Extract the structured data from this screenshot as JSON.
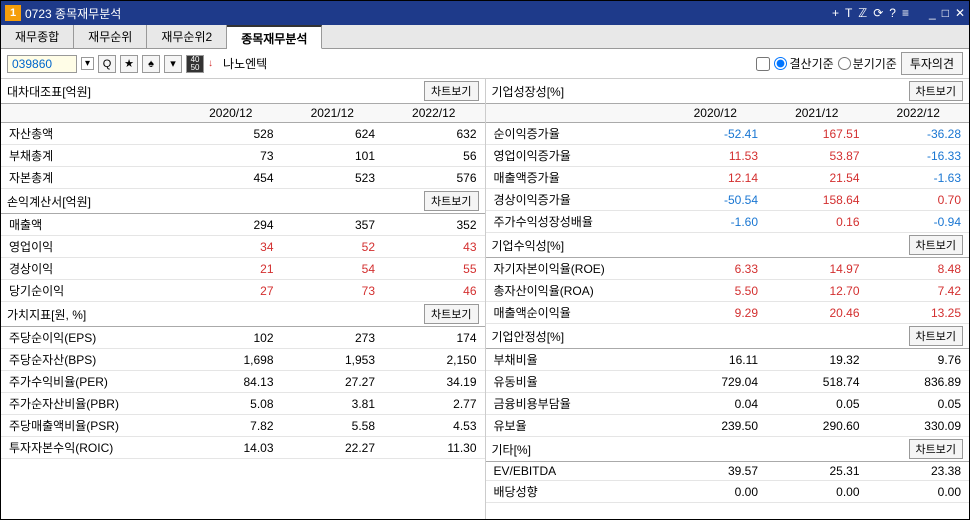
{
  "window": {
    "num": "1",
    "title": "0723 종목재무분석"
  },
  "titlebar_icons": [
    "+",
    "T",
    "ℤ",
    "⟳",
    "?",
    "≡"
  ],
  "win_ctrls": [
    "_",
    "□",
    "✕"
  ],
  "tabs": [
    "재무종합",
    "재무순위",
    "재무순위2",
    "종목재무분석"
  ],
  "active_tab": 3,
  "toolbar": {
    "code": "039860",
    "stock_name": "나노엔텍",
    "radio1": "결산기준",
    "radio2": "분기기준",
    "opinion_btn": "투자의견"
  },
  "headers": [
    "2020/12",
    "2021/12",
    "2022/12"
  ],
  "chart_btn": "차트보기",
  "left": [
    {
      "title": "대차대조표[억원]",
      "rows": [
        {
          "l": "자산총액",
          "v": [
            "528",
            "624",
            "632"
          ],
          "c": [
            "",
            "",
            ""
          ]
        },
        {
          "l": "부채총계",
          "v": [
            "73",
            "101",
            "56"
          ],
          "c": [
            "",
            "",
            ""
          ]
        },
        {
          "l": "자본총계",
          "v": [
            "454",
            "523",
            "576"
          ],
          "c": [
            "",
            "",
            ""
          ]
        }
      ]
    },
    {
      "title": "손익계산서[억원]",
      "rows": [
        {
          "l": "매출액",
          "v": [
            "294",
            "357",
            "352"
          ],
          "c": [
            "",
            "",
            ""
          ]
        },
        {
          "l": "영업이익",
          "v": [
            "34",
            "52",
            "43"
          ],
          "c": [
            "red",
            "red",
            "red"
          ]
        },
        {
          "l": "경상이익",
          "v": [
            "21",
            "54",
            "55"
          ],
          "c": [
            "red",
            "red",
            "red"
          ]
        },
        {
          "l": "당기순이익",
          "v": [
            "27",
            "73",
            "46"
          ],
          "c": [
            "red",
            "red",
            "red"
          ]
        }
      ]
    },
    {
      "title": "가치지표[원, %]",
      "rows": [
        {
          "l": "주당순이익(EPS)",
          "v": [
            "102",
            "273",
            "174"
          ],
          "c": [
            "",
            "",
            ""
          ]
        },
        {
          "l": "주당순자산(BPS)",
          "v": [
            "1,698",
            "1,953",
            "2,150"
          ],
          "c": [
            "",
            "",
            ""
          ]
        },
        {
          "l": "주가수익비율(PER)",
          "v": [
            "84.13",
            "27.27",
            "34.19"
          ],
          "c": [
            "",
            "",
            ""
          ]
        },
        {
          "l": "주가순자산비율(PBR)",
          "v": [
            "5.08",
            "3.81",
            "2.77"
          ],
          "c": [
            "",
            "",
            ""
          ]
        },
        {
          "l": "주당매출액비율(PSR)",
          "v": [
            "7.82",
            "5.58",
            "4.53"
          ],
          "c": [
            "",
            "",
            ""
          ]
        },
        {
          "l": "투자자본수익(ROIC)",
          "v": [
            "14.03",
            "22.27",
            "11.30"
          ],
          "c": [
            "",
            "",
            ""
          ]
        }
      ]
    }
  ],
  "right": [
    {
      "title": "기업성장성[%]",
      "rows": [
        {
          "l": "순이익증가율",
          "v": [
            "-52.41",
            "167.51",
            "-36.28"
          ],
          "c": [
            "blue",
            "red",
            "blue"
          ]
        },
        {
          "l": "영업이익증가율",
          "v": [
            "11.53",
            "53.87",
            "-16.33"
          ],
          "c": [
            "red",
            "red",
            "blue"
          ]
        },
        {
          "l": "매출액증가율",
          "v": [
            "12.14",
            "21.54",
            "-1.63"
          ],
          "c": [
            "red",
            "red",
            "blue"
          ]
        },
        {
          "l": "경상이익증가율",
          "v": [
            "-50.54",
            "158.64",
            "0.70"
          ],
          "c": [
            "blue",
            "red",
            "red"
          ]
        },
        {
          "l": "주가수익성장성배율",
          "v": [
            "-1.60",
            "0.16",
            "-0.94"
          ],
          "c": [
            "blue",
            "red",
            "blue"
          ]
        }
      ]
    },
    {
      "title": "기업수익성[%]",
      "rows": [
        {
          "l": "자기자본이익율(ROE)",
          "v": [
            "6.33",
            "14.97",
            "8.48"
          ],
          "c": [
            "red",
            "red",
            "red"
          ]
        },
        {
          "l": "총자산이익율(ROA)",
          "v": [
            "5.50",
            "12.70",
            "7.42"
          ],
          "c": [
            "red",
            "red",
            "red"
          ]
        },
        {
          "l": "매출액순이익율",
          "v": [
            "9.29",
            "20.46",
            "13.25"
          ],
          "c": [
            "red",
            "red",
            "red"
          ]
        }
      ]
    },
    {
      "title": "기업안정성[%]",
      "rows": [
        {
          "l": "부채비율",
          "v": [
            "16.11",
            "19.32",
            "9.76"
          ],
          "c": [
            "",
            "",
            ""
          ]
        },
        {
          "l": "유동비율",
          "v": [
            "729.04",
            "518.74",
            "836.89"
          ],
          "c": [
            "",
            "",
            ""
          ]
        },
        {
          "l": "금융비용부담율",
          "v": [
            "0.04",
            "0.05",
            "0.05"
          ],
          "c": [
            "",
            "",
            ""
          ]
        },
        {
          "l": "유보율",
          "v": [
            "239.50",
            "290.60",
            "330.09"
          ],
          "c": [
            "",
            "",
            ""
          ]
        }
      ]
    },
    {
      "title": "기타[%]",
      "rows": [
        {
          "l": "EV/EBITDA",
          "v": [
            "39.57",
            "25.31",
            "23.38"
          ],
          "c": [
            "",
            "",
            ""
          ]
        },
        {
          "l": "배당성향",
          "v": [
            "0.00",
            "0.00",
            "0.00"
          ],
          "c": [
            "",
            "",
            ""
          ]
        }
      ]
    }
  ]
}
